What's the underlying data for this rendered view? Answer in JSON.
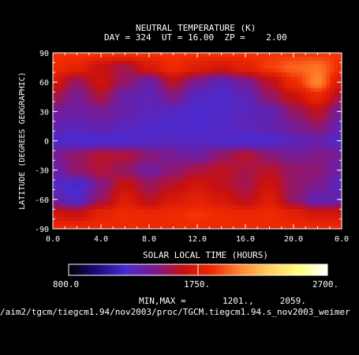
{
  "chart_data": {
    "type": "heatmap",
    "title": "NEUTRAL TEMPERATURE (K)",
    "subtitle": "DAY = 324  UT = 16.00  ZP =    2.00",
    "xlabel": "SOLAR LOCAL TIME (HOURS)",
    "ylabel": "LATITUDE (DEGREES GEOGRAPHIC)",
    "xlim": [
      0,
      24
    ],
    "ylim": [
      -90,
      90
    ],
    "x_ticks": [
      "0.0",
      "4.0",
      "8.0",
      "12.0",
      "16.0",
      "20.0",
      "0.0"
    ],
    "y_ticks": [
      "90",
      "60",
      "30",
      "0",
      "-30",
      "-60",
      "-90"
    ],
    "colorbar": {
      "min_label": "800.0",
      "mid_label": "1750.",
      "max_label": "2700.",
      "range": [
        800,
        2700
      ],
      "colors": [
        "#000000",
        "#1a0a80",
        "#4a2ad0",
        "#7a1a90",
        "#c81010",
        "#f02a00",
        "#ff8a30",
        "#ffd060",
        "#ffff80",
        "#ffffff"
      ]
    },
    "minmax_text": "MIN,MAX =       1201.,     2059.",
    "min": 1201,
    "max": 2059,
    "path_text": "/aim2/tgcm/tiegcm1.94/nov2003/proc/TGCM.tiegcm1.94.s_nov2003_weimer",
    "field": {
      "x": [
        0,
        2,
        4,
        6,
        8,
        10,
        12,
        14,
        16,
        18,
        20,
        22,
        24
      ],
      "y": [
        90,
        75,
        60,
        45,
        30,
        15,
        0,
        -15,
        -30,
        -45,
        -60,
        -75,
        -90
      ],
      "values": [
        [
          1880,
          1880,
          1880,
          1880,
          1880,
          1880,
          1880,
          1880,
          1880,
          1880,
          1880,
          1880,
          1880
        ],
        [
          1850,
          1800,
          1650,
          1540,
          1720,
          1850,
          1760,
          1700,
          1780,
          1900,
          1980,
          2020,
          1850
        ],
        [
          1720,
          1500,
          1680,
          1500,
          1360,
          1600,
          1420,
          1300,
          1420,
          1600,
          1850,
          2059,
          1720
        ],
        [
          1560,
          1420,
          1560,
          1350,
          1300,
          1450,
          1260,
          1240,
          1300,
          1500,
          1650,
          1820,
          1560
        ],
        [
          1400,
          1380,
          1420,
          1350,
          1300,
          1260,
          1240,
          1250,
          1280,
          1320,
          1500,
          1620,
          1400
        ],
        [
          1330,
          1300,
          1330,
          1290,
          1250,
          1240,
          1230,
          1260,
          1300,
          1330,
          1420,
          1500,
          1330
        ],
        [
          1240,
          1220,
          1230,
          1240,
          1260,
          1280,
          1270,
          1250,
          1220,
          1240,
          1300,
          1350,
          1240
        ],
        [
          1420,
          1500,
          1600,
          1580,
          1480,
          1420,
          1380,
          1500,
          1600,
          1480,
          1420,
          1450,
          1420
        ],
        [
          1350,
          1500,
          1580,
          1500,
          1400,
          1480,
          1560,
          1620,
          1550,
          1600,
          1500,
          1480,
          1350
        ],
        [
          1280,
          1201,
          1450,
          1650,
          1520,
          1600,
          1700,
          1620,
          1540,
          1680,
          1500,
          1450,
          1280
        ],
        [
          1350,
          1250,
          1520,
          1750,
          1600,
          1720,
          1780,
          1700,
          1600,
          1750,
          1500,
          1320,
          1350
        ],
        [
          1700,
          1650,
          1800,
          1850,
          1820,
          1850,
          1880,
          1850,
          1820,
          1850,
          1780,
          1700,
          1700
        ],
        [
          1850,
          1850,
          1850,
          1850,
          1850,
          1850,
          1850,
          1850,
          1850,
          1850,
          1850,
          1850,
          1850
        ]
      ]
    }
  }
}
